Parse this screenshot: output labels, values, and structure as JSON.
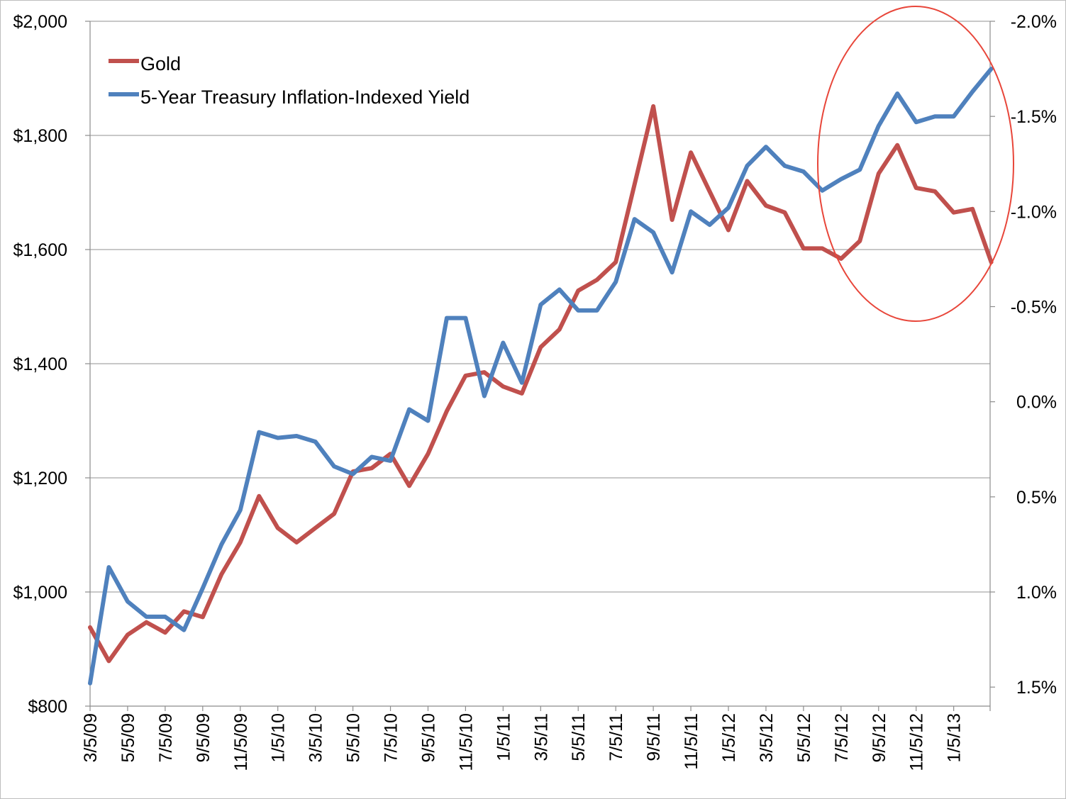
{
  "chart_data": {
    "type": "line",
    "title": "",
    "x_unit": "months since 3/5/09",
    "x_range": [
      0,
      47.94
    ],
    "x_tick_step_months": 2,
    "x_tick_labels": [
      "3/5/09",
      "5/5/09",
      "7/5/09",
      "9/5/09",
      "11/5/09",
      "1/5/10",
      "3/5/10",
      "5/5/10",
      "7/5/10",
      "9/5/10",
      "11/5/10",
      "1/5/11",
      "3/5/11",
      "5/5/11",
      "7/5/11",
      "9/5/11",
      "11/5/11",
      "1/5/12",
      "3/5/12",
      "5/5/12",
      "7/5/12",
      "9/5/12",
      "11/5/12",
      "1/5/13"
    ],
    "y_left": {
      "label": "",
      "ylim": [
        800,
        2000
      ],
      "ticks": [
        800,
        1000,
        1200,
        1400,
        1600,
        1800,
        2000
      ],
      "tick_labels": [
        "$800",
        "$1,000",
        "$1,200",
        "$1,400",
        "$1,600",
        "$1,800",
        "$2,000"
      ]
    },
    "y_right": {
      "label": "",
      "ylim": [
        1.6,
        -2.0
      ],
      "inverted": true,
      "ticks": [
        -2.0,
        -1.5,
        -1.0,
        -0.5,
        0.0,
        0.5,
        1.0,
        1.5
      ],
      "tick_labels": [
        "-2.0%",
        "-1.5%",
        "-1.0%",
        "-0.5%",
        "0.0%",
        "0.5%",
        "1.0%",
        "1.5%"
      ]
    },
    "grid": true,
    "legend": {
      "placement": "top-left"
    },
    "series": [
      {
        "name": "Gold",
        "axis": "left",
        "color": "#c0504d",
        "values": [
          938,
          879,
          925,
          947,
          929,
          966,
          956,
          1031,
          1087,
          1168,
          1112,
          1087,
          1112,
          1137,
          1211,
          1217,
          1242,
          1186,
          1242,
          1317,
          1379,
          1385,
          1360,
          1348,
          1429,
          1460,
          1528,
          1547,
          1578,
          1714,
          1851,
          1652,
          1770,
          1702,
          1634,
          1720,
          1677,
          1665,
          1602,
          1602,
          1584,
          1615,
          1733,
          1783,
          1708,
          1702,
          1665,
          1671,
          1578
        ]
      },
      {
        "name": "5-Year Treasury Inflation-Indexed Yield",
        "axis": "right",
        "color": "#4f81bd",
        "values": [
          1.48,
          0.87,
          1.05,
          1.13,
          1.13,
          1.2,
          0.98,
          0.75,
          0.57,
          0.16,
          0.19,
          0.18,
          0.21,
          0.34,
          0.38,
          0.29,
          0.31,
          0.04,
          0.1,
          -0.44,
          -0.44,
          -0.03,
          -0.31,
          -0.1,
          -0.51,
          -0.59,
          -0.48,
          -0.48,
          -0.63,
          -0.96,
          -0.89,
          -0.68,
          -1.0,
          -0.93,
          -1.02,
          -1.24,
          -1.34,
          -1.24,
          -1.21,
          -1.11,
          -1.17,
          -1.22,
          -1.45,
          -1.62,
          -1.47,
          -1.5,
          -1.5,
          -1.63,
          -1.75
        ]
      }
    ],
    "annotation": {
      "shape": "ellipse",
      "color": "#e8463a",
      "highlights": "recent divergence"
    }
  }
}
